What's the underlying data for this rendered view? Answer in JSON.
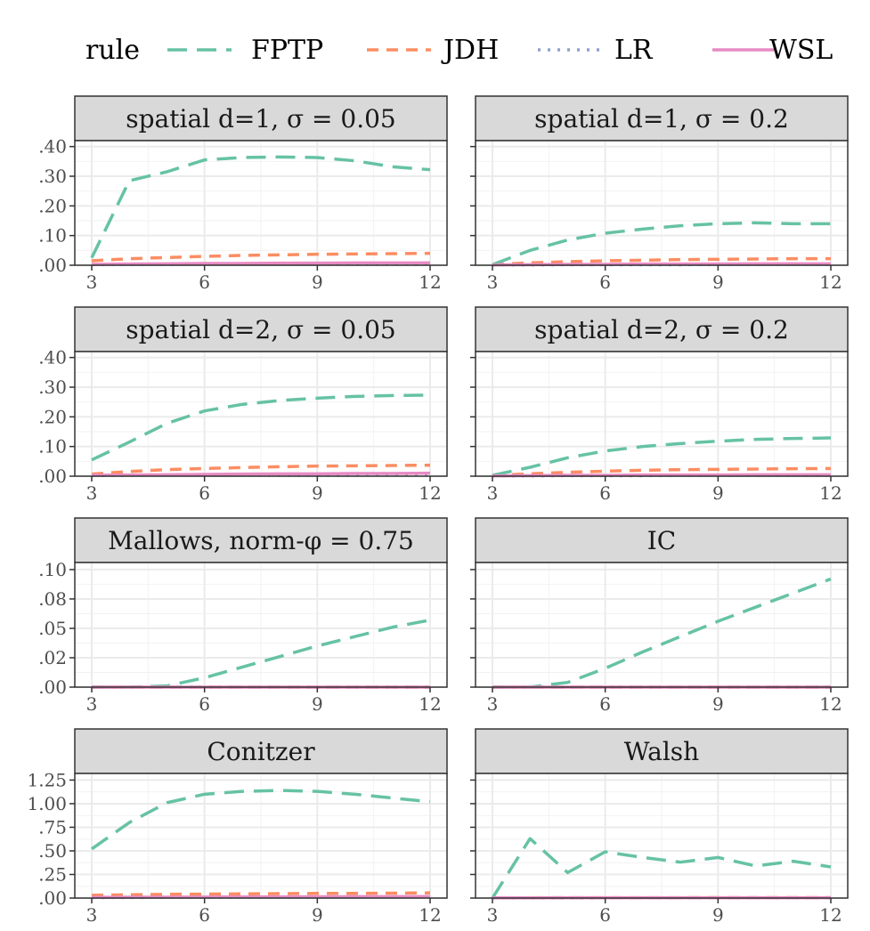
{
  "legend": {
    "title": "rule",
    "items": [
      {
        "label": "FPTP",
        "color": "#66C2A5",
        "linetype": "longdash"
      },
      {
        "label": "JDH",
        "color": "#FC8D62",
        "linetype": "dashed"
      },
      {
        "label": "LR",
        "color": "#8DA0CB",
        "linetype": "dotted"
      },
      {
        "label": "WSL",
        "color": "#E78AC3",
        "linetype": "solid"
      }
    ]
  },
  "chart_data": [
    {
      "type": "line",
      "title": "spatial d=1, σ = 0.05",
      "x": [
        3,
        4,
        5,
        6,
        7,
        8,
        9,
        10,
        11,
        12
      ],
      "xticks": [
        "3",
        "6",
        "9",
        "12"
      ],
      "ylim": [
        0,
        0.42
      ],
      "yticks": [
        0,
        0.1,
        0.2,
        0.3,
        0.4
      ],
      "yticklabels": [
        ".00",
        ".10",
        ".20",
        ".30",
        ".40"
      ],
      "series": [
        {
          "name": "FPTP",
          "values": [
            0.025,
            0.285,
            0.315,
            0.355,
            0.363,
            0.365,
            0.363,
            0.352,
            0.332,
            0.322
          ]
        },
        {
          "name": "JDH",
          "values": [
            0.015,
            0.022,
            0.026,
            0.03,
            0.033,
            0.035,
            0.037,
            0.038,
            0.039,
            0.04
          ]
        },
        {
          "name": "LR",
          "values": [
            0.002,
            0.003,
            0.003,
            0.004,
            0.004,
            0.005,
            0.005,
            0.006,
            0.006,
            0.006
          ]
        },
        {
          "name": "WSL",
          "values": [
            0.003,
            0.004,
            0.005,
            0.006,
            0.006,
            0.007,
            0.007,
            0.008,
            0.008,
            0.008
          ]
        }
      ]
    },
    {
      "type": "line",
      "title": "spatial d=1, σ = 0.2",
      "x": [
        3,
        4,
        5,
        6,
        7,
        8,
        9,
        10,
        11,
        12
      ],
      "xticks": [
        "3",
        "6",
        "9",
        "12"
      ],
      "ylim": [
        0,
        0.42
      ],
      "yticks": [
        0,
        0.1,
        0.2,
        0.3,
        0.4
      ],
      "yticklabels": [
        "",
        "",
        "",
        "",
        ""
      ],
      "series": [
        {
          "name": "FPTP",
          "values": [
            0.002,
            0.05,
            0.085,
            0.108,
            0.122,
            0.133,
            0.14,
            0.143,
            0.14,
            0.14
          ]
        },
        {
          "name": "JDH",
          "values": [
            0.002,
            0.008,
            0.012,
            0.015,
            0.017,
            0.019,
            0.02,
            0.021,
            0.022,
            0.022
          ]
        },
        {
          "name": "LR",
          "values": [
            0.001,
            0.001,
            0.002,
            0.002,
            0.002,
            0.002,
            0.003,
            0.003,
            0.003,
            0.003
          ]
        },
        {
          "name": "WSL",
          "values": [
            0.001,
            0.002,
            0.003,
            0.003,
            0.004,
            0.004,
            0.004,
            0.005,
            0.005,
            0.005
          ]
        }
      ]
    },
    {
      "type": "line",
      "title": "spatial d=2, σ = 0.05",
      "x": [
        3,
        4,
        5,
        6,
        7,
        8,
        9,
        10,
        11,
        12
      ],
      "xticks": [
        "3",
        "6",
        "9",
        "12"
      ],
      "ylim": [
        0,
        0.42
      ],
      "yticks": [
        0,
        0.1,
        0.2,
        0.3,
        0.4
      ],
      "yticklabels": [
        ".00",
        ".10",
        ".20",
        ".30",
        ".40"
      ],
      "series": [
        {
          "name": "FPTP",
          "values": [
            0.055,
            0.115,
            0.178,
            0.22,
            0.242,
            0.255,
            0.263,
            0.269,
            0.272,
            0.273
          ]
        },
        {
          "name": "JDH",
          "values": [
            0.007,
            0.016,
            0.022,
            0.026,
            0.029,
            0.032,
            0.034,
            0.035,
            0.036,
            0.037
          ]
        },
        {
          "name": "LR",
          "values": [
            0.002,
            0.003,
            0.004,
            0.005,
            0.005,
            0.006,
            0.006,
            0.007,
            0.007,
            0.007
          ]
        },
        {
          "name": "WSL",
          "values": [
            0.003,
            0.004,
            0.005,
            0.006,
            0.007,
            0.008,
            0.008,
            0.009,
            0.009,
            0.01
          ]
        }
      ]
    },
    {
      "type": "line",
      "title": "spatial d=2, σ = 0.2",
      "x": [
        3,
        4,
        5,
        6,
        7,
        8,
        9,
        10,
        11,
        12
      ],
      "xticks": [
        "3",
        "6",
        "9",
        "12"
      ],
      "ylim": [
        0,
        0.42
      ],
      "yticks": [
        0,
        0.1,
        0.2,
        0.3,
        0.4
      ],
      "yticklabels": [
        "",
        "",
        "",
        "",
        ""
      ],
      "series": [
        {
          "name": "FPTP",
          "values": [
            0.003,
            0.03,
            0.062,
            0.085,
            0.1,
            0.11,
            0.118,
            0.124,
            0.127,
            0.129
          ]
        },
        {
          "name": "JDH",
          "values": [
            0.002,
            0.008,
            0.013,
            0.017,
            0.02,
            0.022,
            0.023,
            0.024,
            0.025,
            0.026
          ]
        },
        {
          "name": "LR",
          "values": [
            0.001,
            0.001,
            0.002,
            0.002,
            0.002,
            0.003,
            0.003,
            0.003,
            0.003,
            0.003
          ]
        },
        {
          "name": "WSL",
          "values": [
            0.001,
            0.002,
            0.003,
            0.003,
            0.004,
            0.004,
            0.004,
            0.005,
            0.005,
            0.005
          ]
        }
      ]
    },
    {
      "type": "line",
      "title": "Mallows, norm-φ = 0.75",
      "x": [
        3,
        4,
        5,
        6,
        7,
        8,
        9,
        10,
        11,
        12
      ],
      "xticks": [
        "3",
        "6",
        "9",
        "12"
      ],
      "ylim": [
        0,
        0.106
      ],
      "yticks": [
        0,
        0.025,
        0.05,
        0.075,
        0.1
      ],
      "yticklabels": [
        ".00",
        ".02",
        ".05",
        ".08",
        ".10"
      ],
      "series": [
        {
          "name": "FPTP",
          "values": [
            0.0,
            0.0,
            0.001,
            0.008,
            0.017,
            0.026,
            0.035,
            0.043,
            0.051,
            0.057
          ]
        },
        {
          "name": "JDH",
          "values": [
            0.0,
            0.0,
            0.0,
            0.0,
            0.0,
            0.0,
            0.0,
            0.0,
            0.0,
            0.0
          ]
        },
        {
          "name": "LR",
          "values": [
            0.0,
            0.0,
            0.0,
            0.0,
            0.0,
            0.0,
            0.0,
            0.0,
            0.0,
            0.0
          ]
        },
        {
          "name": "WSL",
          "values": [
            0.0,
            0.0,
            0.0,
            0.0,
            0.0,
            0.0,
            0.0,
            0.0,
            0.0,
            0.0
          ]
        }
      ]
    },
    {
      "type": "line",
      "title": "IC",
      "x": [
        3,
        4,
        5,
        6,
        7,
        8,
        9,
        10,
        11,
        12
      ],
      "xticks": [
        "3",
        "6",
        "9",
        "12"
      ],
      "ylim": [
        0,
        0.106
      ],
      "yticks": [
        0,
        0.025,
        0.05,
        0.075,
        0.1
      ],
      "yticklabels": [
        "",
        "",
        "",
        "",
        ""
      ],
      "series": [
        {
          "name": "FPTP",
          "values": [
            0.0,
            0.0,
            0.004,
            0.016,
            0.03,
            0.043,
            0.056,
            0.068,
            0.08,
            0.092
          ]
        },
        {
          "name": "JDH",
          "values": [
            0.0,
            0.0,
            0.0,
            0.0,
            0.0,
            0.0,
            0.0,
            0.0,
            0.0,
            0.0
          ]
        },
        {
          "name": "LR",
          "values": [
            0.0,
            0.0,
            0.0,
            0.0,
            0.0,
            0.0,
            0.0,
            0.0,
            0.0,
            0.0
          ]
        },
        {
          "name": "WSL",
          "values": [
            0.0,
            0.0,
            0.0,
            0.0,
            0.0,
            0.0,
            0.0,
            0.0,
            0.0,
            0.0
          ]
        }
      ]
    },
    {
      "type": "line",
      "title": "Conitzer",
      "x": [
        3,
        4,
        5,
        6,
        7,
        8,
        9,
        10,
        11,
        12
      ],
      "xticks": [
        "3",
        "6",
        "9",
        "12"
      ],
      "ylim": [
        0,
        1.32
      ],
      "yticks": [
        0,
        0.25,
        0.5,
        0.75,
        1.0,
        1.25
      ],
      "yticklabels": [
        ".00",
        ".25",
        ".50",
        ".75",
        "1.00",
        "1.25"
      ],
      "series": [
        {
          "name": "FPTP",
          "values": [
            0.52,
            0.8,
            1.01,
            1.1,
            1.13,
            1.14,
            1.13,
            1.1,
            1.06,
            1.02
          ]
        },
        {
          "name": "JDH",
          "values": [
            0.03,
            0.035,
            0.04,
            0.042,
            0.045,
            0.047,
            0.049,
            0.05,
            0.052,
            0.055
          ]
        },
        {
          "name": "LR",
          "values": [
            0.005,
            0.006,
            0.007,
            0.008,
            0.009,
            0.01,
            0.01,
            0.011,
            0.011,
            0.012
          ]
        },
        {
          "name": "WSL",
          "values": [
            0.008,
            0.009,
            0.01,
            0.011,
            0.012,
            0.013,
            0.014,
            0.015,
            0.015,
            0.016
          ]
        }
      ]
    },
    {
      "type": "line",
      "title": "Walsh",
      "x": [
        3,
        4,
        5,
        6,
        7,
        8,
        9,
        10,
        11,
        12
      ],
      "xticks": [
        "3",
        "6",
        "9",
        "12"
      ],
      "ylim": [
        0,
        1.32
      ],
      "yticks": [
        0,
        0.25,
        0.5,
        0.75,
        1.0,
        1.25
      ],
      "yticklabels": [
        "",
        "",
        "",
        "",
        "",
        ""
      ],
      "series": [
        {
          "name": "FPTP",
          "values": [
            0.0,
            0.63,
            0.27,
            0.49,
            0.43,
            0.38,
            0.43,
            0.34,
            0.39,
            0.33
          ]
        },
        {
          "name": "JDH",
          "values": [
            0.002,
            0.003,
            0.003,
            0.004,
            0.004,
            0.004,
            0.005,
            0.005,
            0.005,
            0.005
          ]
        },
        {
          "name": "LR",
          "values": [
            0.001,
            0.001,
            0.001,
            0.002,
            0.002,
            0.002,
            0.002,
            0.002,
            0.002,
            0.002
          ]
        },
        {
          "name": "WSL",
          "values": [
            0.002,
            0.002,
            0.003,
            0.003,
            0.003,
            0.003,
            0.004,
            0.004,
            0.004,
            0.004
          ]
        }
      ]
    }
  ]
}
